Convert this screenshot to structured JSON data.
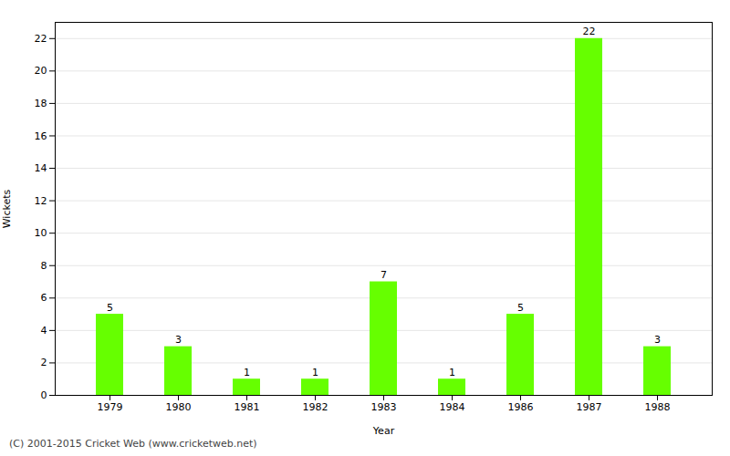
{
  "chart_data": {
    "type": "bar",
    "categories": [
      "1979",
      "1980",
      "1981",
      "1982",
      "1983",
      "1984",
      "1986",
      "1987",
      "1988"
    ],
    "values": [
      5,
      3,
      1,
      1,
      7,
      1,
      5,
      22,
      3
    ],
    "color": "#66ff00",
    "xlabel": "Year",
    "ylabel": "Wickets",
    "ylim": [
      0,
      23
    ],
    "yticks": [
      0,
      2,
      4,
      6,
      8,
      10,
      12,
      14,
      16,
      18,
      20,
      22
    ],
    "grid": true,
    "data_labels": true,
    "annotations": [
      "(C) 2001-2015 Cricket Web (www.cricketweb.net)"
    ]
  }
}
